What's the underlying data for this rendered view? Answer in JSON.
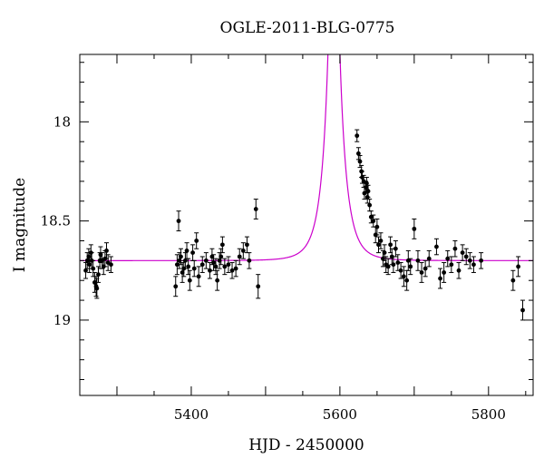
{
  "chart_data": {
    "type": "scatter",
    "title": "OGLE-2011-BLG-0775",
    "xlabel": "HJD - 2450000",
    "ylabel": "I magnitude",
    "xlim": [
      5250,
      5860
    ],
    "ylim": [
      19.38,
      17.66
    ],
    "y_inverted": true,
    "x_ticks": [
      5400,
      5600,
      5800
    ],
    "y_ticks": [
      18,
      18.5,
      19
    ],
    "grid": false,
    "legend": "none",
    "colors": {
      "points": "#000000",
      "error_bars": "#000000",
      "model": "#cc00cc",
      "frame": "#000000"
    },
    "model": {
      "name": "",
      "baseline": 18.7,
      "t0": 5592,
      "tE": 20,
      "u0": 0.04
    },
    "series": [
      {
        "name": "",
        "x": [
          5258,
          5260,
          5262,
          5263,
          5265,
          5266,
          5268,
          5270,
          5272,
          5273,
          5275,
          5277,
          5278,
          5280,
          5282,
          5284,
          5286,
          5288,
          5292,
          5379,
          5381,
          5383,
          5384,
          5386,
          5388,
          5390,
          5392,
          5394,
          5396,
          5398,
          5402,
          5404,
          5407,
          5410,
          5415,
          5420,
          5425,
          5428,
          5430,
          5433,
          5435,
          5438,
          5440,
          5442,
          5445,
          5450,
          5455,
          5460,
          5465,
          5470,
          5475,
          5478,
          5487,
          5490,
          5623,
          5625,
          5627,
          5629,
          5630,
          5632,
          5633,
          5635,
          5636,
          5637,
          5638,
          5640,
          5642,
          5645,
          5648,
          5650,
          5652,
          5655,
          5658,
          5660,
          5662,
          5665,
          5668,
          5670,
          5672,
          5675,
          5678,
          5682,
          5686,
          5690,
          5692,
          5695,
          5700,
          5705,
          5710,
          5715,
          5720,
          5730,
          5735,
          5740,
          5745,
          5750,
          5755,
          5760,
          5765,
          5770,
          5775,
          5780,
          5790,
          5833,
          5840,
          5846
        ],
        "y": [
          18.75,
          18.7,
          18.68,
          18.72,
          18.66,
          18.7,
          18.74,
          18.81,
          18.83,
          18.84,
          18.77,
          18.7,
          18.67,
          18.7,
          18.73,
          18.69,
          18.65,
          18.71,
          18.72,
          18.83,
          18.72,
          18.5,
          18.7,
          18.68,
          18.76,
          18.74,
          18.7,
          18.65,
          18.73,
          18.8,
          18.66,
          18.74,
          18.6,
          18.78,
          18.72,
          18.7,
          18.75,
          18.68,
          18.71,
          18.73,
          18.8,
          18.7,
          18.68,
          18.62,
          18.73,
          18.72,
          18.75,
          18.74,
          18.68,
          18.65,
          18.62,
          18.7,
          18.44,
          18.83,
          18.07,
          18.16,
          18.2,
          18.25,
          18.28,
          18.3,
          18.36,
          18.33,
          18.31,
          18.38,
          18.35,
          18.42,
          18.48,
          18.5,
          18.57,
          18.53,
          18.62,
          18.6,
          18.69,
          18.66,
          18.72,
          18.73,
          18.62,
          18.68,
          18.72,
          18.64,
          18.71,
          18.75,
          18.78,
          18.8,
          18.7,
          18.73,
          18.54,
          18.7,
          18.76,
          18.74,
          18.69,
          18.63,
          18.79,
          18.76,
          18.69,
          18.72,
          18.64,
          18.75,
          18.66,
          18.68,
          18.7,
          18.72,
          18.7,
          18.8,
          18.73,
          18.95
        ],
        "err": [
          0.04,
          0.04,
          0.04,
          0.04,
          0.04,
          0.04,
          0.04,
          0.05,
          0.05,
          0.05,
          0.04,
          0.04,
          0.04,
          0.04,
          0.04,
          0.04,
          0.04,
          0.04,
          0.04,
          0.05,
          0.05,
          0.05,
          0.04,
          0.04,
          0.05,
          0.04,
          0.04,
          0.04,
          0.04,
          0.05,
          0.04,
          0.04,
          0.04,
          0.05,
          0.04,
          0.04,
          0.04,
          0.04,
          0.04,
          0.04,
          0.05,
          0.04,
          0.04,
          0.04,
          0.04,
          0.04,
          0.04,
          0.04,
          0.04,
          0.04,
          0.04,
          0.04,
          0.05,
          0.06,
          0.03,
          0.03,
          0.03,
          0.03,
          0.03,
          0.03,
          0.03,
          0.03,
          0.03,
          0.03,
          0.03,
          0.03,
          0.03,
          0.03,
          0.04,
          0.04,
          0.04,
          0.04,
          0.04,
          0.04,
          0.04,
          0.04,
          0.04,
          0.04,
          0.04,
          0.04,
          0.04,
          0.04,
          0.05,
          0.05,
          0.05,
          0.04,
          0.05,
          0.05,
          0.05,
          0.04,
          0.04,
          0.04,
          0.05,
          0.05,
          0.04,
          0.04,
          0.04,
          0.04,
          0.04,
          0.04,
          0.04,
          0.04,
          0.04,
          0.05,
          0.05,
          0.05
        ]
      }
    ]
  }
}
